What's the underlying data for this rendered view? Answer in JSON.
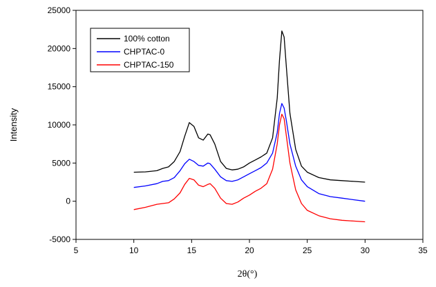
{
  "chart_data": {
    "type": "line",
    "title": "",
    "xlabel": "2θ(°)",
    "ylabel": "Intensity",
    "xlim": [
      5,
      35
    ],
    "ylim": [
      -5000,
      25000
    ],
    "xticks": [
      "5",
      "10",
      "15",
      "20",
      "25",
      "30",
      "35"
    ],
    "yticks": [
      "-5000",
      "0",
      "5000",
      "10000",
      "15000",
      "20000",
      "25000"
    ],
    "grid": false,
    "legend_position": "top-left",
    "series": [
      {
        "name": "100% cotton",
        "color": "#000000",
        "points": [
          [
            10,
            3800
          ],
          [
            11,
            3850
          ],
          [
            12,
            4000
          ],
          [
            12.5,
            4300
          ],
          [
            13,
            4500
          ],
          [
            13.5,
            5200
          ],
          [
            14,
            6500
          ],
          [
            14.4,
            8500
          ],
          [
            14.8,
            10300
          ],
          [
            15.2,
            9800
          ],
          [
            15.6,
            8300
          ],
          [
            16,
            8000
          ],
          [
            16.4,
            8800
          ],
          [
            16.6,
            8700
          ],
          [
            17,
            7500
          ],
          [
            17.5,
            5200
          ],
          [
            18,
            4300
          ],
          [
            18.5,
            4100
          ],
          [
            19,
            4200
          ],
          [
            19.5,
            4500
          ],
          [
            20,
            5000
          ],
          [
            20.5,
            5400
          ],
          [
            21,
            5800
          ],
          [
            21.5,
            6300
          ],
          [
            22,
            8300
          ],
          [
            22.4,
            13500
          ],
          [
            22.6,
            18500
          ],
          [
            22.8,
            22300
          ],
          [
            23,
            21500
          ],
          [
            23.2,
            17500
          ],
          [
            23.5,
            11500
          ],
          [
            24,
            6800
          ],
          [
            24.5,
            4600
          ],
          [
            25,
            3800
          ],
          [
            26,
            3100
          ],
          [
            27,
            2800
          ],
          [
            28,
            2700
          ],
          [
            29,
            2600
          ],
          [
            30,
            2500
          ]
        ]
      },
      {
        "name": "CHPTAC-0",
        "color": "#0000ff",
        "points": [
          [
            10,
            1800
          ],
          [
            11,
            2000
          ],
          [
            12,
            2300
          ],
          [
            12.5,
            2600
          ],
          [
            13,
            2700
          ],
          [
            13.5,
            3100
          ],
          [
            14,
            4000
          ],
          [
            14.4,
            4900
          ],
          [
            14.8,
            5500
          ],
          [
            15.2,
            5200
          ],
          [
            15.6,
            4700
          ],
          [
            16,
            4600
          ],
          [
            16.4,
            5000
          ],
          [
            16.6,
            4900
          ],
          [
            17,
            4200
          ],
          [
            17.5,
            3200
          ],
          [
            18,
            2700
          ],
          [
            18.5,
            2600
          ],
          [
            19,
            2800
          ],
          [
            19.5,
            3200
          ],
          [
            20,
            3600
          ],
          [
            20.5,
            4000
          ],
          [
            21,
            4400
          ],
          [
            21.5,
            5000
          ],
          [
            22,
            6300
          ],
          [
            22.4,
            9000
          ],
          [
            22.6,
            11500
          ],
          [
            22.8,
            12800
          ],
          [
            23,
            12200
          ],
          [
            23.2,
            10500
          ],
          [
            23.5,
            7500
          ],
          [
            24,
            4600
          ],
          [
            24.5,
            2800
          ],
          [
            25,
            1900
          ],
          [
            26,
            1000
          ],
          [
            27,
            600
          ],
          [
            28,
            400
          ],
          [
            29,
            200
          ],
          [
            30,
            0
          ]
        ]
      },
      {
        "name": "CHPTAC-150",
        "color": "#ff0000",
        "points": [
          [
            10,
            -1100
          ],
          [
            11,
            -800
          ],
          [
            12,
            -400
          ],
          [
            12.5,
            -300
          ],
          [
            13,
            -200
          ],
          [
            13.5,
            300
          ],
          [
            14,
            1100
          ],
          [
            14.4,
            2200
          ],
          [
            14.8,
            3000
          ],
          [
            15.2,
            2800
          ],
          [
            15.6,
            2100
          ],
          [
            16,
            1900
          ],
          [
            16.4,
            2200
          ],
          [
            16.6,
            2300
          ],
          [
            17,
            1700
          ],
          [
            17.5,
            400
          ],
          [
            18,
            -300
          ],
          [
            18.5,
            -400
          ],
          [
            19,
            -100
          ],
          [
            19.5,
            400
          ],
          [
            20,
            800
          ],
          [
            20.5,
            1300
          ],
          [
            21,
            1700
          ],
          [
            21.5,
            2300
          ],
          [
            22,
            4200
          ],
          [
            22.4,
            7500
          ],
          [
            22.6,
            10000
          ],
          [
            22.8,
            11400
          ],
          [
            23,
            10800
          ],
          [
            23.2,
            8500
          ],
          [
            23.5,
            5000
          ],
          [
            24,
            1500
          ],
          [
            24.5,
            -300
          ],
          [
            25,
            -1200
          ],
          [
            26,
            -1900
          ],
          [
            27,
            -2300
          ],
          [
            28,
            -2500
          ],
          [
            29,
            -2600
          ],
          [
            30,
            -2700
          ]
        ]
      }
    ]
  }
}
